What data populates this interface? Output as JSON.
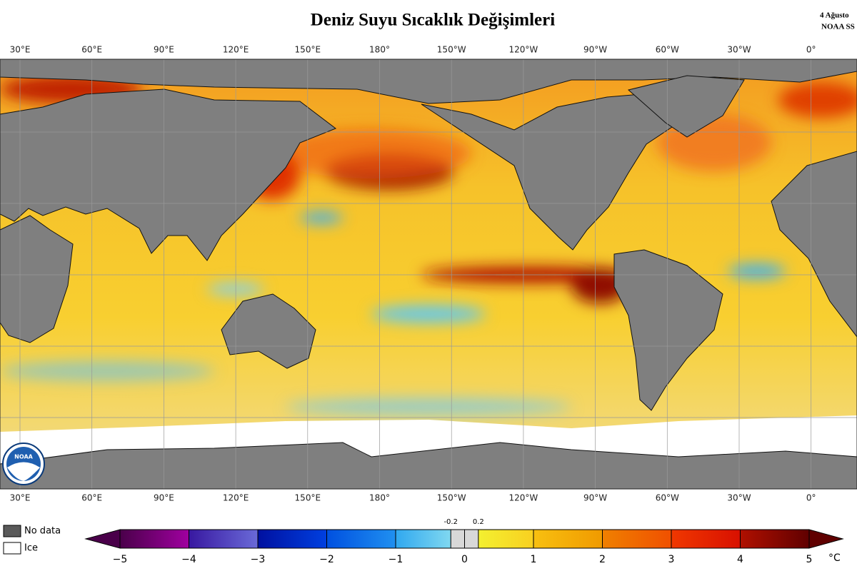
{
  "title": "Deniz Suyu Sıcaklık Değişimleri",
  "date": "4 Ağusto",
  "source": "NOAA SS",
  "logo": "NOAA",
  "longitudes": [
    "30°E",
    "60°E",
    "90°E",
    "120°E",
    "150°E",
    "180°",
    "150°W",
    "120°W",
    "90°W",
    "60°W",
    "30°W",
    "0°"
  ],
  "legend": {
    "no_data": "No data",
    "ice": "Ice"
  },
  "colorbar": {
    "range": [
      -5,
      5
    ],
    "ticks": [
      {
        "value": -5,
        "label": "−5"
      },
      {
        "value": -4,
        "label": "−4"
      },
      {
        "value": -3,
        "label": "−3"
      },
      {
        "value": -2,
        "label": "−2"
      },
      {
        "value": -1,
        "label": "−1"
      },
      0,
      1,
      2,
      3,
      4,
      5
    ],
    "fine_ticks": [
      -0.2,
      0.2
    ],
    "unit": "°C"
  }
}
